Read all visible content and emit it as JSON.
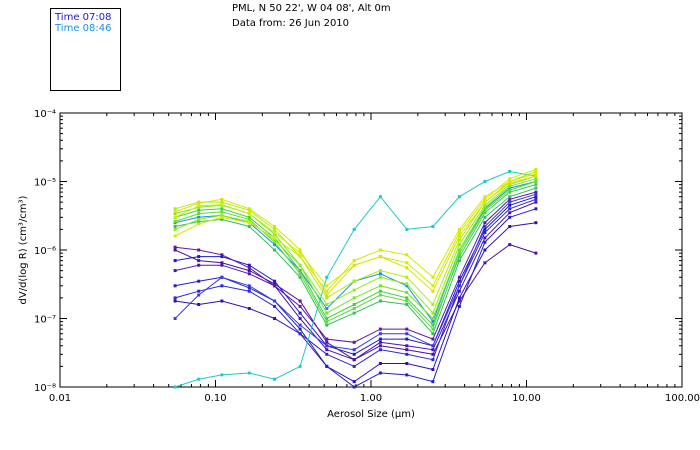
{
  "header": {
    "location": "PML, N 50 22', W 04 08', Alt 0m",
    "date": "Data from: 26 Jun 2010"
  },
  "legend": [
    {
      "label": "Time 07:08",
      "color": "#1a1acc"
    },
    {
      "label": "Time 08:46",
      "color": "#1e90e0"
    }
  ],
  "chart_data": {
    "type": "line",
    "x_scale": "log",
    "y_scale": "log",
    "xlim": [
      0.01,
      100
    ],
    "ylim": [
      1e-08,
      0.0001
    ],
    "xlabel": "Aerosol Size (μm)",
    "ylabel": "dV/d(log R) (cm³/cm³)",
    "x_ticks": [
      {
        "value": 0.01,
        "label": "0.01"
      },
      {
        "value": 0.1,
        "label": "0.10"
      },
      {
        "value": 1,
        "label": "1.00"
      },
      {
        "value": 10,
        "label": "10.00"
      },
      {
        "value": 100,
        "label": "100.00"
      }
    ],
    "y_ticks": [
      {
        "value": 1e-08,
        "label": "10⁻⁸"
      },
      {
        "value": 1e-07,
        "label": "10⁻⁷"
      },
      {
        "value": 1e-06,
        "label": "10⁻⁶"
      },
      {
        "value": 1e-05,
        "label": "10⁻⁵"
      },
      {
        "value": 0.0001,
        "label": "10⁻⁴"
      }
    ],
    "x": [
      0.055,
      0.078,
      0.11,
      0.165,
      0.24,
      0.35,
      0.52,
      0.78,
      1.15,
      1.7,
      2.5,
      3.7,
      5.4,
      7.8,
      11.5
    ],
    "series": [
      {
        "color": "#5010a0",
        "values": [
          1e-06,
          7e-07,
          6.5e-07,
          5e-07,
          3.2e-07,
          1.8e-07,
          4.5e-08,
          2.5e-08,
          4e-08,
          3.5e-08,
          3e-08,
          1.8e-07,
          6.5e-07,
          1.2e-06,
          9e-07
        ]
      },
      {
        "color": "#3010b8",
        "values": [
          1.8e-07,
          1.6e-07,
          1.8e-07,
          1.4e-07,
          1e-07,
          6e-08,
          2e-08,
          1.2e-08,
          2.2e-08,
          2.2e-08,
          1.8e-08,
          2e-07,
          1e-06,
          2.2e-06,
          2.5e-06
        ]
      },
      {
        "color": "#2020c8",
        "values": [
          3e-07,
          3.5e-07,
          4e-07,
          2.8e-07,
          1.8e-07,
          7e-08,
          2e-08,
          1e-08,
          1.6e-08,
          1.5e-08,
          1.2e-08,
          1.5e-07,
          1.3e-06,
          3e-06,
          4e-06
        ]
      },
      {
        "color": "#4a14b0",
        "values": [
          5e-07,
          6e-07,
          6e-07,
          4.5e-07,
          3e-07,
          1e-07,
          3.5e-08,
          2.5e-08,
          4.5e-08,
          4e-08,
          3.5e-08,
          2.5e-07,
          1.5e-06,
          3.5e-06,
          5e-06
        ]
      },
      {
        "color": "#2828d8",
        "values": [
          2e-07,
          2.5e-07,
          3e-07,
          2.5e-07,
          1.5e-07,
          6e-08,
          3e-08,
          2e-08,
          3.5e-08,
          3e-08,
          2.5e-08,
          3e-07,
          1.8e-06,
          4e-06,
          5.5e-06
        ]
      },
      {
        "color": "#1a1acc",
        "values": [
          7e-07,
          8e-07,
          8e-07,
          6e-07,
          3.5e-07,
          1.2e-07,
          4e-08,
          3e-08,
          5e-08,
          5e-08,
          4e-08,
          3.5e-07,
          2e-06,
          4.5e-06,
          6e-06
        ]
      },
      {
        "color": "#3a3ae0",
        "values": [
          1e-07,
          2.2e-07,
          4e-07,
          3e-07,
          1.8e-07,
          8e-08,
          4e-08,
          3.5e-08,
          6e-08,
          6e-08,
          4e-08,
          3e-07,
          2.2e-06,
          5e-06,
          6.5e-06
        ]
      },
      {
        "color": "#6018a8",
        "values": [
          1.1e-06,
          1e-06,
          8.5e-07,
          5.5e-07,
          3e-07,
          1.5e-07,
          5e-08,
          4.5e-08,
          7e-08,
          7e-08,
          5e-08,
          4e-07,
          2.5e-06,
          5.5e-06,
          7e-06
        ]
      },
      {
        "color": "#20c8c8",
        "values": [
          1e-08,
          1.3e-08,
          1.5e-08,
          1.6e-08,
          1.3e-08,
          2e-08,
          4e-07,
          2e-06,
          6e-06,
          2e-06,
          2.2e-06,
          6e-06,
          1e-05,
          1.4e-05,
          1.2e-05
        ]
      },
      {
        "color": "#1890e0",
        "values": [
          2.5e-06,
          3e-06,
          3.2e-06,
          2.5e-06,
          1.2e-06,
          5e-07,
          1.4e-07,
          3.5e-07,
          4.5e-07,
          3e-07,
          9e-08,
          1e-06,
          4e-06,
          8e-06,
          1e-05
        ]
      },
      {
        "color": "#30c060",
        "values": [
          2.2e-06,
          2.6e-06,
          2.8e-06,
          2.2e-06,
          1e-06,
          4e-07,
          8e-08,
          1.2e-07,
          1.8e-07,
          1.6e-07,
          6e-08,
          7e-07,
          3e-06,
          6e-06,
          8e-06
        ]
      },
      {
        "color": "#40d040",
        "values": [
          3e-06,
          3.8e-06,
          4e-06,
          3e-06,
          1.5e-06,
          5e-07,
          1e-07,
          1.6e-07,
          2.5e-07,
          2e-07,
          8e-08,
          8e-07,
          3.5e-06,
          7e-06,
          9e-06
        ]
      },
      {
        "color": "#58e030",
        "values": [
          2.6e-06,
          3.4e-06,
          3.6e-06,
          2.8e-06,
          1.3e-06,
          4.5e-07,
          9e-08,
          1.4e-07,
          2.2e-07,
          1.8e-07,
          7e-08,
          9e-07,
          3.8e-06,
          7.5e-06,
          1e-05
        ]
      },
      {
        "color": "#70e820",
        "values": [
          3.4e-06,
          4.2e-06,
          4.5e-06,
          3.4e-06,
          1.7e-06,
          6e-07,
          1.2e-07,
          2e-07,
          3e-07,
          2.4e-07,
          1e-07,
          1e-06,
          4.2e-06,
          8.5e-06,
          1.1e-05
        ]
      },
      {
        "color": "#90ec18",
        "values": [
          2e-06,
          2.8e-06,
          3.2e-06,
          2.6e-06,
          1.4e-06,
          6e-07,
          1.6e-07,
          2.6e-07,
          4e-07,
          3.2e-07,
          1.2e-07,
          1.2e-06,
          4.5e-06,
          9e-06,
          1.2e-05
        ]
      },
      {
        "color": "#a8f010",
        "values": [
          4e-06,
          5e-06,
          5e-06,
          3.8e-06,
          2e-06,
          8e-07,
          2e-07,
          3.5e-07,
          5e-07,
          4e-07,
          1.6e-07,
          1.4e-06,
          5e-06,
          1e-05,
          1.4e-05
        ]
      },
      {
        "color": "#c8f000",
        "values": [
          3e-06,
          4.4e-06,
          4.6e-06,
          3.4e-06,
          1.8e-06,
          9e-07,
          3e-07,
          6e-07,
          8e-07,
          6.5e-07,
          3e-07,
          1.8e-06,
          5.5e-06,
          1.1e-05,
          1.5e-05
        ]
      },
      {
        "color": "#d8e800",
        "values": [
          1.6e-06,
          2.4e-06,
          3e-06,
          2.5e-06,
          1.5e-06,
          8e-07,
          2.5e-07,
          7e-07,
          1e-06,
          8.5e-07,
          4e-07,
          2e-06,
          6e-06,
          1e-05,
          1.3e-05
        ]
      },
      {
        "color": "#e0e000",
        "values": [
          3.6e-06,
          4.8e-06,
          5.5e-06,
          4e-06,
          2.2e-06,
          1e-06,
          2.2e-07,
          6e-07,
          8e-07,
          5.5e-07,
          2.5e-07,
          1.6e-06,
          5e-06,
          9.5e-06,
          1.2e-05
        ]
      }
    ]
  }
}
